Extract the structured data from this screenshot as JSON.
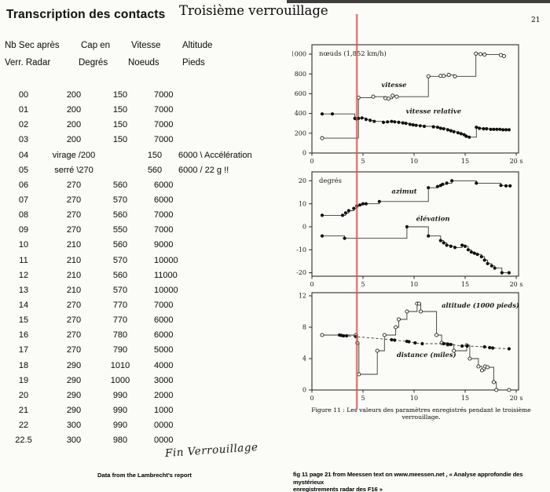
{
  "page": {
    "left_title": "Transcription des contacts",
    "right_title": "Troisième verrouillage",
    "page_number": "21",
    "handwriting": "Fin Verrouillage",
    "left_footer": "Data from the Lambrecht's report",
    "right_footer_line1": "fig 11 page 21 from Meessen text on www.meessen.net , « Analyse approfondie des mystérieux",
    "right_footer_line2": "enregistrements radar des F16 »",
    "figure_caption": "Figure 11 :  Les valeurs des paramètres enregistrés pendant le troisième verrouillage."
  },
  "table": {
    "col_headers": [
      {
        "line1": "Nb Sec après",
        "line2": "Verr. Radar"
      },
      {
        "line1": "Cap en",
        "line2": "Degrés"
      },
      {
        "line1": "Vitesse",
        "line2": "Noeuds"
      },
      {
        "line1": "Altitude",
        "line2": "Pieds"
      }
    ],
    "rows": [
      {
        "nb": "00",
        "cap": "200",
        "vit": "150",
        "alt": "7000"
      },
      {
        "nb": "01",
        "cap": "200",
        "vit": "150",
        "alt": "7000"
      },
      {
        "nb": "02",
        "cap": "200",
        "vit": "150",
        "alt": "7000"
      },
      {
        "nb": "03",
        "cap": "200",
        "vit": "150",
        "alt": "7000"
      },
      {
        "nb": "04",
        "cap": "virage /200",
        "vit": "150",
        "alt": "6000 \\ Accélération",
        "wide": true
      },
      {
        "nb": "05",
        "cap": "serré \\270",
        "vit": "560",
        "alt": "6000 /  22 g !!",
        "wide": true
      },
      {
        "nb": "06",
        "cap": "270",
        "vit": "560",
        "alt": "6000"
      },
      {
        "nb": "07",
        "cap": "270",
        "vit": "570",
        "alt": "6000"
      },
      {
        "nb": "08",
        "cap": "270",
        "vit": "560",
        "alt": "7000"
      },
      {
        "nb": "09",
        "cap": "270",
        "vit": "550",
        "alt": "7000"
      },
      {
        "nb": "10",
        "cap": "210",
        "vit": "560",
        "alt": "9000"
      },
      {
        "nb": "11",
        "cap": "210",
        "vit": "570",
        "alt": "10000"
      },
      {
        "nb": "12",
        "cap": "210",
        "vit": "560",
        "alt": "11000"
      },
      {
        "nb": "13",
        "cap": "210",
        "vit": "570",
        "alt": "10000"
      },
      {
        "nb": "14",
        "cap": "270",
        "vit": "770",
        "alt": "7000"
      },
      {
        "nb": "15",
        "cap": "270",
        "vit": "770",
        "alt": "6000"
      },
      {
        "nb": "16",
        "cap": "270",
        "vit": "780",
        "alt": "6000"
      },
      {
        "nb": "17",
        "cap": "270",
        "vit": "790",
        "alt": "5000"
      },
      {
        "nb": "18",
        "cap": "290",
        "vit": "1010",
        "alt": "4000"
      },
      {
        "nb": "19",
        "cap": "290",
        "vit": "1000",
        "alt": "3000"
      },
      {
        "nb": "20",
        "cap": "290",
        "vit": "990",
        "alt": "2000"
      },
      {
        "nb": "21",
        "cap": "290",
        "vit": "990",
        "alt": "1000"
      },
      {
        "nb": "22",
        "cap": "300",
        "vit": "990",
        "alt": "0000"
      },
      {
        "nb": "22.5",
        "cap": "300",
        "vit": "980",
        "alt": "0000"
      }
    ]
  },
  "event_line": {
    "t": 4.4,
    "color": "#d95555"
  },
  "chart_data": [
    {
      "type": "line",
      "title": "nœuds (1,852 km/h)",
      "x_range": [
        0,
        20.23
      ],
      "y_range": [
        0,
        1095
      ],
      "y_ticks": [
        0,
        200,
        400,
        600,
        800,
        1000
      ],
      "x_ticks": [
        {
          "v": 0,
          "label": "0"
        },
        {
          "v": 5,
          "label": "5"
        },
        {
          "v": 10,
          "label": "10"
        },
        {
          "v": 15,
          "label": "15"
        },
        {
          "v": 20,
          "label": "20 s"
        }
      ],
      "labels": [
        {
          "text": "vitesse",
          "x": 6.8,
          "y": 665
        },
        {
          "text": "vitesse relative",
          "x": 9.2,
          "y": 400
        }
      ],
      "series": [
        {
          "name": "vitesse",
          "marker": "open",
          "line": "solid",
          "step": true,
          "points": [
            [
              1,
              150
            ],
            [
              4.55,
              560
            ],
            [
              6.0,
              570
            ],
            [
              7.2,
              555
            ],
            [
              7.5,
              550
            ],
            [
              7.9,
              580
            ],
            [
              8.3,
              570
            ],
            [
              11.4,
              775
            ],
            [
              12.6,
              780
            ],
            [
              12.9,
              780
            ],
            [
              13.4,
              790
            ],
            [
              14.0,
              775
            ],
            [
              16.05,
              1005
            ],
            [
              16.5,
              1000
            ],
            [
              16.9,
              995
            ],
            [
              18.5,
              990
            ],
            [
              18.8,
              980
            ]
          ]
        },
        {
          "name": "vitesse relative",
          "marker": "filled",
          "line": "solid",
          "step": true,
          "points": [
            [
              1,
              395
            ],
            [
              2,
              395
            ],
            [
              4.2,
              350
            ],
            [
              4.35,
              345
            ],
            [
              4.55,
              350
            ],
            [
              4.9,
              355
            ],
            [
              5.3,
              340
            ],
            [
              5.7,
              330
            ],
            [
              6.1,
              320
            ],
            [
              7.0,
              310
            ],
            [
              7.4,
              315
            ],
            [
              7.8,
              320
            ],
            [
              8.1,
              315
            ],
            [
              8.5,
              310
            ],
            [
              8.9,
              305
            ],
            [
              9.2,
              300
            ],
            [
              9.6,
              290
            ],
            [
              9.9,
              285
            ],
            [
              10.2,
              280
            ],
            [
              10.6,
              275
            ],
            [
              11.0,
              270
            ],
            [
              11.9,
              265
            ],
            [
              12.3,
              260
            ],
            [
              12.6,
              250
            ],
            [
              12.9,
              245
            ],
            [
              13.3,
              235
            ],
            [
              13.6,
              225
            ],
            [
              13.9,
              215
            ],
            [
              14.3,
              205
            ],
            [
              14.6,
              195
            ],
            [
              14.9,
              185
            ],
            [
              15.1,
              170
            ],
            [
              15.4,
              160
            ],
            [
              16.1,
              260
            ],
            [
              16.4,
              250
            ],
            [
              16.8,
              245
            ],
            [
              17.1,
              245
            ],
            [
              17.5,
              240
            ],
            [
              17.8,
              240
            ],
            [
              18.1,
              240
            ],
            [
              18.4,
              240
            ],
            [
              18.7,
              235
            ],
            [
              19.0,
              235
            ],
            [
              19.3,
              235
            ]
          ]
        }
      ]
    },
    {
      "type": "line",
      "title": "degrés",
      "x_range": [
        0,
        20.23
      ],
      "y_range": [
        -21.5,
        23.9
      ],
      "y_ticks": [
        -20,
        -10,
        0,
        10,
        20
      ],
      "x_ticks": [
        {
          "v": 0,
          "label": "0"
        },
        {
          "v": 5,
          "label": "5"
        },
        {
          "v": 10,
          "label": "10"
        },
        {
          "v": 15,
          "label": "15"
        },
        {
          "v": 20,
          "label": "20 s"
        }
      ],
      "labels": [
        {
          "text": "azimut",
          "x": 7.8,
          "y": 14.5
        },
        {
          "text": "élévation",
          "x": 10.2,
          "y": 2.6
        }
      ],
      "series": [
        {
          "name": "azimut",
          "marker": "filled",
          "line": "solid",
          "step": true,
          "points": [
            [
              1,
              5
            ],
            [
              3.0,
              5
            ],
            [
              3.3,
              6
            ],
            [
              3.6,
              7
            ],
            [
              4.1,
              8
            ],
            [
              4.4,
              9
            ],
            [
              4.7,
              9.5
            ],
            [
              5.0,
              10
            ],
            [
              5.3,
              10
            ],
            [
              6.6,
              11
            ],
            [
              11.4,
              17
            ],
            [
              12.3,
              17.5
            ],
            [
              12.6,
              18
            ],
            [
              12.8,
              18.5
            ],
            [
              13.2,
              19
            ],
            [
              13.7,
              20
            ],
            [
              16.1,
              19
            ],
            [
              18.5,
              18
            ],
            [
              19.0,
              17.8
            ],
            [
              19.4,
              17.8
            ]
          ]
        },
        {
          "name": "élévation",
          "marker": "filled",
          "line": "solid",
          "step": true,
          "points": [
            [
              1,
              -4
            ],
            [
              3.2,
              -5
            ],
            [
              9.3,
              0
            ],
            [
              11.4,
              -4
            ],
            [
              12.6,
              -6
            ],
            [
              12.9,
              -7
            ],
            [
              13.2,
              -8
            ],
            [
              13.6,
              -8.5
            ],
            [
              14.0,
              -9
            ],
            [
              14.7,
              -8
            ],
            [
              15.0,
              -8.5
            ],
            [
              15.3,
              -10
            ],
            [
              15.6,
              -11
            ],
            [
              15.9,
              -11.5
            ],
            [
              16.2,
              -12
            ],
            [
              16.6,
              -13
            ],
            [
              16.9,
              -14.5
            ],
            [
              17.2,
              -16
            ],
            [
              17.6,
              -17
            ],
            [
              17.9,
              -18
            ],
            [
              18.6,
              -20
            ],
            [
              19.3,
              -20
            ]
          ]
        }
      ]
    },
    {
      "type": "line",
      "title": "",
      "x_range": [
        0,
        20.23
      ],
      "y_range": [
        0,
        12.4
      ],
      "y_ticks": [
        0,
        4,
        8,
        12
      ],
      "x_ticks": [
        {
          "v": 0,
          "label": "0"
        },
        {
          "v": 5,
          "label": "5"
        },
        {
          "v": 10,
          "label": "10"
        },
        {
          "v": 15,
          "label": "15"
        },
        {
          "v": 20,
          "label": "20 s"
        }
      ],
      "labels": [
        {
          "text": "altitude (1000 pieds)",
          "x": 12.7,
          "y": 10.5
        },
        {
          "text": "distance (miles)",
          "x": 8.3,
          "y": 4.2
        }
      ],
      "series": [
        {
          "name": "altitude (1000 pieds)",
          "marker": "open",
          "line": "solid",
          "step": true,
          "points": [
            [
              1,
              7
            ],
            [
              4.3,
              7
            ],
            [
              4.45,
              6
            ],
            [
              4.6,
              2
            ],
            [
              6.4,
              5
            ],
            [
              7.1,
              7
            ],
            [
              8.2,
              8
            ],
            [
              8.5,
              9
            ],
            [
              9.3,
              10
            ],
            [
              10.3,
              11
            ],
            [
              10.5,
              11
            ],
            [
              10.65,
              10
            ],
            [
              12.2,
              7
            ],
            [
              12.7,
              6
            ],
            [
              13.3,
              5.8
            ],
            [
              13.9,
              5
            ],
            [
              15.15,
              5.7
            ],
            [
              15.45,
              4
            ],
            [
              16.3,
              3
            ],
            [
              16.65,
              2.5
            ],
            [
              16.95,
              3
            ],
            [
              17.2,
              2.9
            ],
            [
              17.8,
              1
            ],
            [
              18.05,
              0
            ],
            [
              19.3,
              0
            ]
          ]
        },
        {
          "name": "distance (miles)",
          "marker": "filled",
          "line": "dashed",
          "step": false,
          "points": [
            [
              2.7,
              7
            ],
            [
              2.9,
              6.95
            ],
            [
              3.1,
              6.9
            ],
            [
              3.4,
              6.9
            ],
            [
              4.3,
              6.8
            ],
            [
              7.8,
              6.4
            ],
            [
              8.1,
              6.35
            ],
            [
              9.3,
              6.2
            ],
            [
              9.5,
              6.15
            ],
            [
              10.1,
              6.0
            ],
            [
              10.8,
              5.9
            ],
            [
              12.9,
              5.9
            ],
            [
              13.3,
              5.85
            ],
            [
              13.6,
              5.8
            ],
            [
              14.7,
              5.6
            ],
            [
              15.2,
              5.6
            ],
            [
              16.9,
              5.5
            ],
            [
              17.4,
              5.4
            ],
            [
              17.7,
              5.35
            ],
            [
              19.3,
              5.25
            ]
          ]
        }
      ]
    }
  ]
}
